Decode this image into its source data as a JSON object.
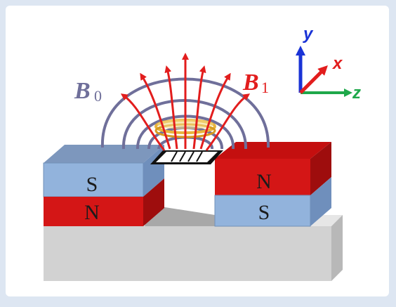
{
  "field_labels": {
    "static": {
      "symbol": "B",
      "subscript": "0"
    },
    "rf": {
      "symbol": "B",
      "subscript": "1"
    }
  },
  "magnets": {
    "left": {
      "top_pole": "S",
      "bottom_pole": "N"
    },
    "right": {
      "top_pole": "N",
      "bottom_pole": "S"
    }
  },
  "axes": {
    "x": "x",
    "y": "y",
    "z": "z"
  },
  "colors": {
    "frame_background": "#dde6f2",
    "canvas": "#ffffff",
    "static_field": "#6f6f9a",
    "rf_field": "#e21d1d",
    "south_pole": "#8fb0d9",
    "north_pole": "#d41616",
    "substrate": "#d4d4d4",
    "coil": "#e8b43c",
    "axis_x": "#e21d1d",
    "axis_y": "#1a33d6",
    "axis_z": "#1ea84a"
  }
}
